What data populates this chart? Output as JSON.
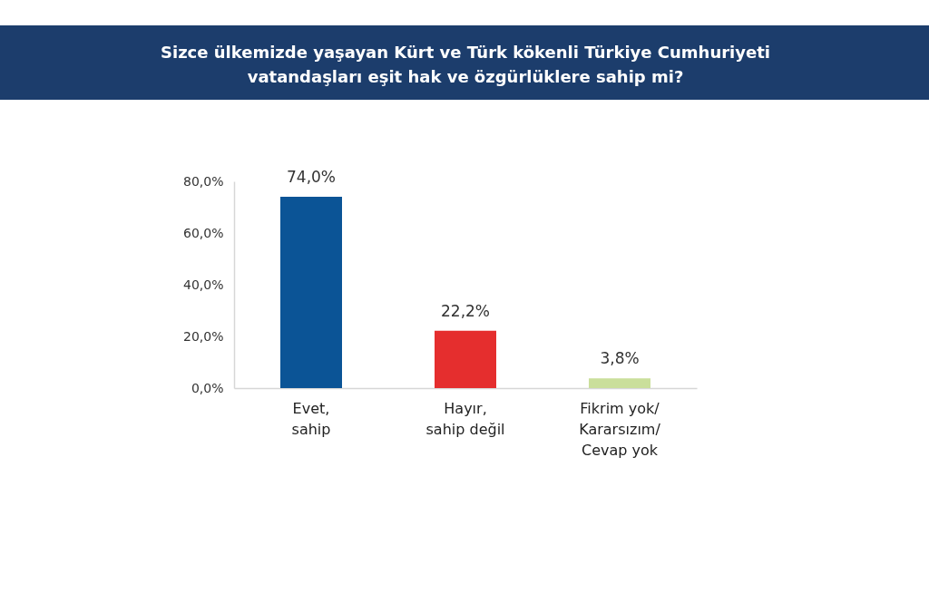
{
  "chart_data": {
    "type": "bar",
    "title": "Sizce ülkemizde yaşayan Kürt ve Türk kökenli Türkiye Cumhuriyeti\nvatandaşları eşit hak ve özgürlüklere sahip mi?",
    "categories": [
      "Evet,\nsahip",
      "Hayır,\nsahip değil",
      "Fikrim yok/\nKararsızım/\nCevap yok"
    ],
    "values": [
      74.0,
      22.2,
      3.8
    ],
    "colors": [
      "#0b5496",
      "#e52e2e",
      "#cadf9b"
    ],
    "value_labels": [
      "74,0%",
      "22,2%",
      "3,8%"
    ],
    "ylim": [
      0,
      80
    ],
    "yticks": [
      {
        "value": 0,
        "label": "0,0%"
      },
      {
        "value": 20,
        "label": "20,0%"
      },
      {
        "value": 40,
        "label": "40,0%"
      },
      {
        "value": 60,
        "label": "60,0%"
      },
      {
        "value": 80,
        "label": "80,0%"
      }
    ]
  }
}
